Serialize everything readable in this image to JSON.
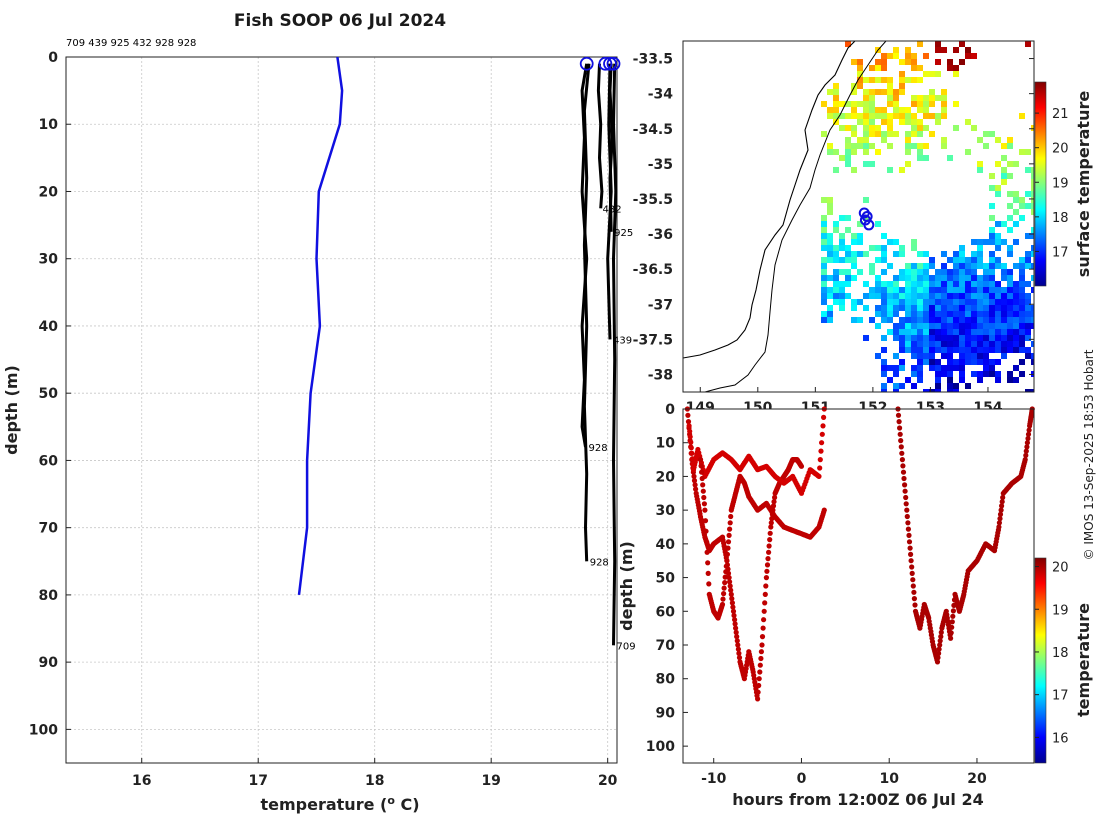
{
  "chart_data": [
    {
      "type": "line",
      "title": "Fish SOOP 06 Jul 2024",
      "xlabel": "temperature (",
      "xlabel_sup": "o",
      "xlabel_unit": " C)",
      "ylabel": "depth (m)",
      "xlim": [
        15.35,
        20.08
      ],
      "ylim": [
        0,
        105
      ],
      "xticks": [
        "16",
        "17",
        "18",
        "19",
        "20"
      ],
      "yticks": [
        "0",
        "10",
        "20",
        "30",
        "40",
        "50",
        "60",
        "70",
        "80",
        "90",
        "100"
      ],
      "id_list": "709 439 925 432 928 928",
      "series": [
        {
          "name": "blue",
          "color": "#1010e0",
          "points": [
            [
              17.68,
              0
            ],
            [
              17.72,
              5
            ],
            [
              17.7,
              10
            ],
            [
              17.52,
              20
            ],
            [
              17.5,
              30
            ],
            [
              17.53,
              40
            ],
            [
              17.45,
              50
            ],
            [
              17.42,
              60
            ],
            [
              17.42,
              70
            ],
            [
              17.35,
              80
            ]
          ]
        },
        {
          "name": "432",
          "color": "#000000",
          "points": [
            [
              19.93,
              1
            ],
            [
              19.92,
              5
            ],
            [
              19.94,
              10
            ],
            [
              19.93,
              15
            ],
            [
              19.95,
              20
            ],
            [
              19.94,
              22.5
            ]
          ]
        },
        {
          "name": "925",
          "color": "#000000",
          "points": [
            [
              20.03,
              1
            ],
            [
              20.02,
              5
            ],
            [
              20.04,
              12
            ],
            [
              20.02,
              18
            ],
            [
              20.03,
              26
            ]
          ]
        },
        {
          "name": "439",
          "color": "#000000",
          "points": [
            [
              20.02,
              1
            ],
            [
              20.01,
              10
            ],
            [
              20.03,
              20
            ],
            [
              20.0,
              30
            ],
            [
              20.02,
              42
            ]
          ]
        },
        {
          "name": "928",
          "color": "#000000",
          "points": [
            [
              19.82,
              1
            ],
            [
              19.78,
              5
            ],
            [
              19.8,
              12
            ],
            [
              19.78,
              20
            ],
            [
              19.82,
              30
            ],
            [
              19.78,
              40
            ],
            [
              19.8,
              48
            ],
            [
              19.78,
              55
            ],
            [
              19.81,
              58
            ]
          ]
        },
        {
          "name": "928",
          "color": "#000000",
          "points": [
            [
              19.84,
              1
            ],
            [
              19.8,
              8
            ],
            [
              19.82,
              18
            ],
            [
              19.8,
              28
            ],
            [
              19.82,
              40
            ],
            [
              19.8,
              52
            ],
            [
              19.82,
              62
            ],
            [
              19.81,
              70
            ],
            [
              19.82,
              75
            ]
          ]
        },
        {
          "name": "709",
          "color": "#000000",
          "points": [
            [
              20.06,
              1
            ],
            [
              20.05,
              10
            ],
            [
              20.07,
              20
            ],
            [
              20.05,
              30
            ],
            [
              20.06,
              45
            ],
            [
              20.05,
              60
            ],
            [
              20.06,
              75
            ],
            [
              20.05,
              87.5
            ]
          ]
        }
      ],
      "labels": [
        {
          "text": "432",
          "x": 19.93,
          "y": 22.5
        },
        {
          "text": "925",
          "x": 20.03,
          "y": 26
        },
        {
          "text": "439",
          "x": 20.02,
          "y": 42
        },
        {
          "text": "928",
          "x": 19.81,
          "y": 58
        },
        {
          "text": "928",
          "x": 19.82,
          "y": 75
        },
        {
          "text": "709",
          "x": 20.05,
          "y": 87.5
        }
      ],
      "markers": [
        [
          19.82,
          1
        ],
        [
          19.98,
          1
        ],
        [
          20.02,
          1
        ],
        [
          20.05,
          1
        ]
      ]
    },
    {
      "type": "map",
      "colorbar_label": "surface temperature",
      "colorbar_ticks": [
        "17",
        "18",
        "19",
        "20",
        "21"
      ],
      "colorbar_range": [
        16.0,
        21.9
      ],
      "xlim": [
        148.7,
        154.8
      ],
      "ylim": [
        -38.25,
        -33.25
      ],
      "xticks": [
        "149",
        "150",
        "151",
        "152",
        "153",
        "154"
      ],
      "yticks": [
        "-33.5",
        "-34",
        "-34.5",
        "-35",
        "-35.5",
        "-36",
        "-36.5",
        "-37",
        "-37.5",
        "-38"
      ],
      "track_points": [
        [
          151.85,
          -35.7
        ],
        [
          151.9,
          -35.75
        ],
        [
          151.87,
          -35.8
        ],
        [
          151.93,
          -35.87
        ]
      ]
    },
    {
      "type": "scatter",
      "xlabel": "hours from 12:00Z 06 Jul 24",
      "ylabel": "depth (m)",
      "xlim": [
        -13.5,
        26.5
      ],
      "ylim": [
        0,
        105
      ],
      "xticks": [
        "-10",
        "0",
        "10",
        "20"
      ],
      "yticks": [
        "0",
        "10",
        "20",
        "30",
        "40",
        "50",
        "60",
        "70",
        "80",
        "90",
        "100"
      ],
      "colorbar_label": "temperature",
      "colorbar_ticks": [
        "16",
        "17",
        "18",
        "19",
        "20"
      ],
      "colorbar_range": [
        15.4,
        20.2
      ],
      "series": [
        {
          "name": "cast1",
          "temperature": 19.9,
          "points": [
            [
              -13.0,
              0
            ],
            [
              -12.5,
              15
            ],
            [
              -12.0,
              25
            ],
            [
              -11.5,
              32
            ],
            [
              -11.0,
              38
            ],
            [
              -10.5,
              42
            ],
            [
              -10.0,
              40
            ],
            [
              -9.0,
              38
            ],
            [
              -8.5,
              45
            ],
            [
              -8.0,
              55
            ],
            [
              -7.5,
              65
            ],
            [
              -7.0,
              75
            ],
            [
              -6.5,
              80
            ],
            [
              -6.0,
              72
            ],
            [
              -5.5,
              78
            ],
            [
              -5.0,
              86
            ],
            [
              -4.5,
              70
            ],
            [
              -4.0,
              50
            ],
            [
              -3.5,
              35
            ],
            [
              -3.0,
              25
            ],
            [
              -2.5,
              22
            ],
            [
              -2.0,
              20
            ],
            [
              -1.5,
              18
            ],
            [
              -1.0,
              15
            ],
            [
              -0.5,
              15
            ],
            [
              0.0,
              17
            ]
          ]
        },
        {
          "name": "cast2",
          "temperature": 19.8,
          "points": [
            [
              -12.8,
              5
            ],
            [
              -12.3,
              18
            ],
            [
              -11.8,
              12
            ],
            [
              -11.0,
              20
            ],
            [
              -10.0,
              15
            ],
            [
              -9.0,
              13
            ],
            [
              -8.0,
              15
            ],
            [
              -7.0,
              18
            ],
            [
              -6.0,
              14
            ],
            [
              -5.0,
              18
            ],
            [
              -4.0,
              17
            ],
            [
              -3.0,
              20
            ],
            [
              -2.0,
              22
            ],
            [
              -1.0,
              20
            ],
            [
              0.0,
              25
            ],
            [
              1.0,
              18
            ],
            [
              2.0,
              20
            ],
            [
              2.6,
              0
            ]
          ]
        },
        {
          "name": "cast3",
          "temperature": 19.9,
          "points": [
            [
              -11.5,
              15
            ],
            [
              -11.0,
              30
            ],
            [
              -10.5,
              55
            ],
            [
              -10.0,
              60
            ],
            [
              -9.5,
              62
            ],
            [
              -9.0,
              58
            ],
            [
              -8.5,
              45
            ],
            [
              -8.0,
              30
            ],
            [
              -7.5,
              25
            ],
            [
              -7.0,
              20
            ],
            [
              -6.5,
              22
            ],
            [
              -6.0,
              26
            ],
            [
              -5.0,
              30
            ],
            [
              -4.0,
              28
            ],
            [
              -3.0,
              32
            ],
            [
              -2.0,
              35
            ],
            [
              -1.0,
              36
            ],
            [
              0.0,
              37
            ],
            [
              1.0,
              38
            ],
            [
              2.0,
              35
            ],
            [
              2.6,
              30
            ]
          ]
        },
        {
          "name": "cast4",
          "temperature": 20.0,
          "points": [
            [
              11.0,
              0
            ],
            [
              11.5,
              15
            ],
            [
              12.0,
              30
            ],
            [
              12.5,
              45
            ],
            [
              13.0,
              60
            ],
            [
              13.5,
              65
            ],
            [
              14.0,
              58
            ],
            [
              14.5,
              62
            ],
            [
              15.0,
              70
            ],
            [
              15.5,
              75
            ],
            [
              16.0,
              65
            ],
            [
              16.5,
              60
            ],
            [
              17.0,
              68
            ],
            [
              17.5,
              55
            ],
            [
              18.0,
              60
            ],
            [
              18.5,
              55
            ],
            [
              19.0,
              48
            ],
            [
              20.0,
              45
            ],
            [
              21.0,
              40
            ],
            [
              22.0,
              42
            ],
            [
              22.5,
              35
            ],
            [
              23.0,
              25
            ],
            [
              24.0,
              22
            ],
            [
              25.0,
              20
            ],
            [
              25.5,
              15
            ],
            [
              26.0,
              5
            ],
            [
              26.3,
              0
            ]
          ]
        }
      ]
    }
  ],
  "credit": "© IMOS 13-Sep-2025 18:53 Hobart"
}
